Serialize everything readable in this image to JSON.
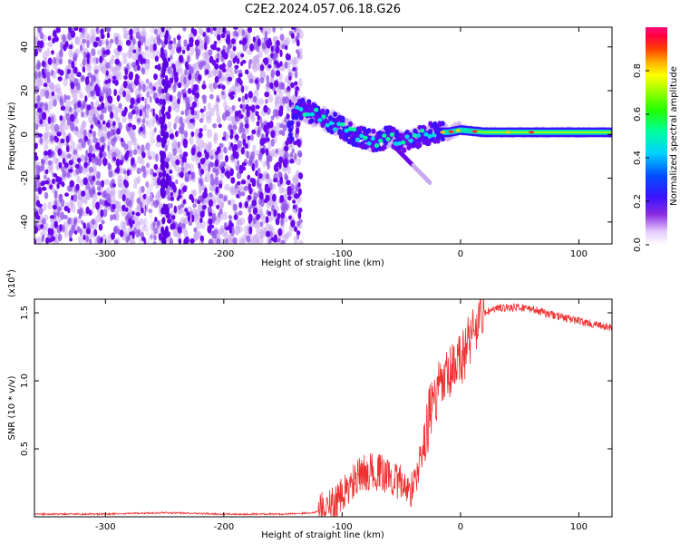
{
  "title": "C2E2.2024.057.06.18.G26",
  "chart_data": [
    {
      "type": "heatmap",
      "xlabel": "Height of straight line (km)",
      "ylabel": "Frequency (Hz)",
      "xlim": [
        -360,
        128
      ],
      "ylim": [
        -50,
        49
      ],
      "xticks": [
        -300,
        -200,
        -100,
        0,
        100
      ],
      "yticks": [
        -40,
        -20,
        0,
        20,
        40
      ],
      "noise_region": [
        -360,
        -135
      ],
      "core_track": [
        {
          "x": -142,
          "y": 12
        },
        {
          "x": -130,
          "y": 11
        },
        {
          "x": -120,
          "y": 9
        },
        {
          "x": -110,
          "y": 6
        },
        {
          "x": -100,
          "y": 3
        },
        {
          "x": -90,
          "y": 0
        },
        {
          "x": -80,
          "y": -2
        },
        {
          "x": -70,
          "y": -3
        },
        {
          "x": -60,
          "y": -1
        },
        {
          "x": -50,
          "y": -3
        },
        {
          "x": -40,
          "y": -2
        },
        {
          "x": -30,
          "y": 0
        },
        {
          "x": -20,
          "y": 1
        },
        {
          "x": -10,
          "y": 1
        },
        {
          "x": 0,
          "y": 2
        },
        {
          "x": 20,
          "y": 1
        },
        {
          "x": 60,
          "y": 1
        },
        {
          "x": 128,
          "y": 1
        }
      ],
      "colorbar": {
        "label": "Normalized spectral amplitude",
        "range": [
          0.0,
          1.0
        ],
        "ticks": [
          0.0,
          0.2,
          0.4,
          0.6,
          0.8
        ]
      }
    },
    {
      "type": "line",
      "xlabel": "Height of straight line (km)",
      "ylabel": "SNR (10 * v/v)",
      "multiplier": "(x10",
      "multiplier_exp": "4",
      "multiplier_close": ")",
      "xlim": [
        -360,
        128
      ],
      "ylim": [
        0.0,
        1.6
      ],
      "xticks": [
        -300,
        -200,
        -100,
        0,
        100
      ],
      "yticks": [
        0.5,
        1.0,
        1.5
      ],
      "color": "#ee3030",
      "series": [
        {
          "name": "SNR",
          "x": [
            -360,
            -300,
            -250,
            -200,
            -150,
            -125,
            -110,
            -100,
            -90,
            -80,
            -70,
            -60,
            -50,
            -40,
            -35,
            -30,
            -25,
            -20,
            -15,
            -10,
            -5,
            0,
            5,
            10,
            20,
            30,
            40,
            50,
            60,
            70,
            80,
            90,
            100,
            110,
            120,
            128
          ],
          "y": [
            0.02,
            0.02,
            0.03,
            0.02,
            0.02,
            0.03,
            0.07,
            0.15,
            0.26,
            0.33,
            0.33,
            0.3,
            0.24,
            0.2,
            0.38,
            0.58,
            0.8,
            0.9,
            0.97,
            1.03,
            1.08,
            1.15,
            1.25,
            1.37,
            1.5,
            1.53,
            1.54,
            1.54,
            1.53,
            1.5,
            1.48,
            1.46,
            1.44,
            1.42,
            1.4,
            1.39
          ]
        }
      ]
    }
  ]
}
